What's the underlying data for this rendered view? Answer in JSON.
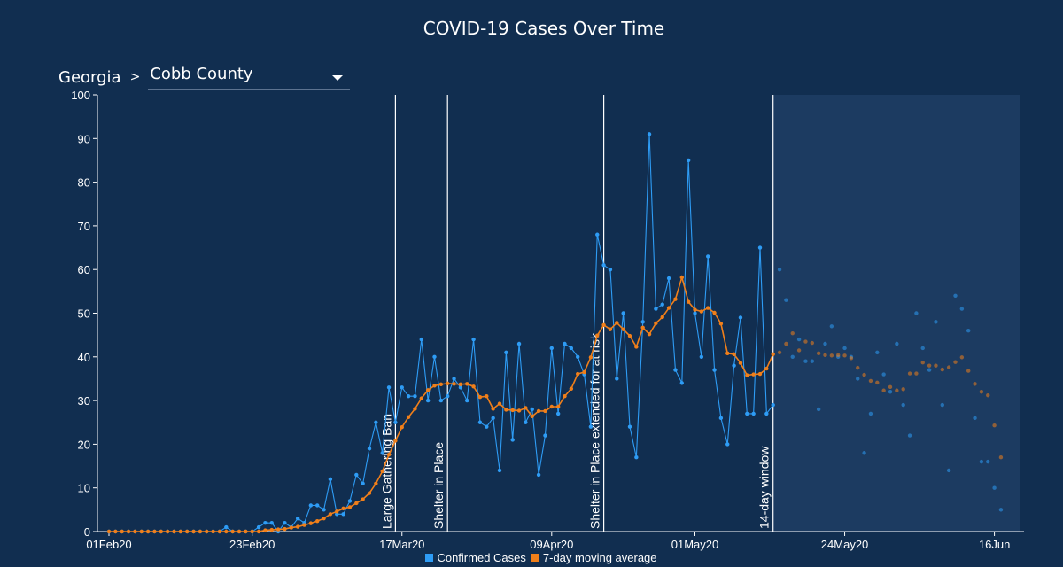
{
  "header": {
    "title": "COVID-19 Cases Over Time"
  },
  "breadcrumb": {
    "region": "Georgia",
    "separator": ">",
    "county": "Cobb County"
  },
  "colors": {
    "background": "#112e50",
    "confirmed": "#2e9cf5",
    "moving_average": "#f07f1a",
    "annotation_line": "#ffffff",
    "shaded_window": "#1c3b61"
  },
  "chart_data": {
    "type": "line",
    "title": "COVID-19 Cases Over Time",
    "x_start": "2020-02-01",
    "x_ticks": [
      "01Feb20",
      "23Feb20",
      "17Mar20",
      "09Apr20",
      "01May20",
      "24May20",
      "16Jun"
    ],
    "ylim": [
      0,
      100
    ],
    "y_ticks": [
      0,
      10,
      20,
      30,
      40,
      50,
      60,
      70,
      80,
      90,
      100
    ],
    "grid": false,
    "legend_position": "bottom-center",
    "series": [
      {
        "name": "Confirmed Cases",
        "values": [
          0,
          0,
          0,
          0,
          0,
          0,
          0,
          0,
          0,
          0,
          0,
          0,
          0,
          0,
          0,
          0,
          0,
          0,
          1,
          0,
          0,
          0,
          0,
          1,
          2,
          2,
          0,
          2,
          1,
          3,
          2,
          6,
          6,
          5,
          12,
          4,
          4,
          7,
          13,
          11,
          19,
          25,
          18,
          33,
          25,
          33,
          31,
          31,
          44,
          30,
          40,
          30,
          31,
          35,
          33,
          30,
          44,
          25,
          24,
          26,
          14,
          41,
          21,
          43,
          25,
          28,
          13,
          22,
          42,
          27,
          43,
          42,
          40,
          36,
          24,
          68,
          61,
          60,
          35,
          50,
          24,
          17,
          48,
          91,
          51,
          52,
          58,
          37,
          34,
          85,
          50,
          40,
          63,
          37,
          26,
          20,
          38,
          49,
          27,
          27,
          65,
          27,
          29,
          60,
          53,
          40,
          44,
          39,
          39,
          28,
          43,
          47,
          40,
          42,
          40,
          35,
          18,
          27,
          41,
          36,
          32,
          43,
          29,
          22,
          50,
          42,
          37,
          48,
          29,
          14,
          54,
          51,
          46,
          26,
          16,
          16,
          10,
          5
        ]
      },
      {
        "name": "7-day moving average",
        "values": [
          0,
          0,
          0,
          0,
          0,
          0,
          0,
          0,
          0,
          0,
          0,
          0,
          0,
          0,
          0,
          0,
          0,
          0,
          0,
          0,
          0,
          0,
          0,
          0,
          0.3,
          0.4,
          0.5,
          0.6,
          0.9,
          1.1,
          1.5,
          1.9,
          2.4,
          3.0,
          4.0,
          4.6,
          5.3,
          5.6,
          6.5,
          7.4,
          8.8,
          11.0,
          13.8,
          17.6,
          20.8,
          23.9,
          26.2,
          28.1,
          30.5,
          32.4,
          33.4,
          33.7,
          33.9,
          33.8,
          33.7,
          33.8,
          33.2,
          30.8,
          31.0,
          28.1,
          29.3,
          27.9,
          27.8,
          27.7,
          28.3,
          26.4,
          27.6,
          27.6,
          28.6,
          28.6,
          31.0,
          32.7,
          36.1,
          36.5,
          39.9,
          44.9,
          47.3,
          46.3,
          47.8,
          46.3,
          44.8,
          42.3,
          46.7,
          45.2,
          47.7,
          49.1,
          51.2,
          53.2,
          58.2,
          52.6,
          50.8,
          50.4,
          51.2,
          50.1,
          47.6,
          40.8,
          40.6,
          38.6,
          35.8,
          36.0,
          36.1,
          37.3,
          40.6,
          41.0,
          43.0,
          45.4,
          41.5,
          43.5,
          43.2,
          40.8,
          40.4,
          40.3,
          40.4,
          40.3,
          39.7,
          37.5,
          35.9,
          34.5,
          34.1,
          32.3,
          33.1,
          32.3,
          32.6,
          36.2,
          36.2,
          38.7,
          38.0,
          38.0,
          37.1,
          37.6,
          38.8,
          39.9,
          36.8,
          33.8,
          32.0,
          31.2,
          24.3,
          17.0
        ]
      }
    ],
    "annotations": [
      {
        "date_index": 44,
        "label": "Large Gathering Ban"
      },
      {
        "date_index": 52,
        "label": "Shelter in Place"
      },
      {
        "date_index": 76,
        "label": "Shelter in Place extended for at risk"
      },
      {
        "date_index": 102,
        "label": "14-day window"
      }
    ],
    "shaded_from_index": 102
  }
}
